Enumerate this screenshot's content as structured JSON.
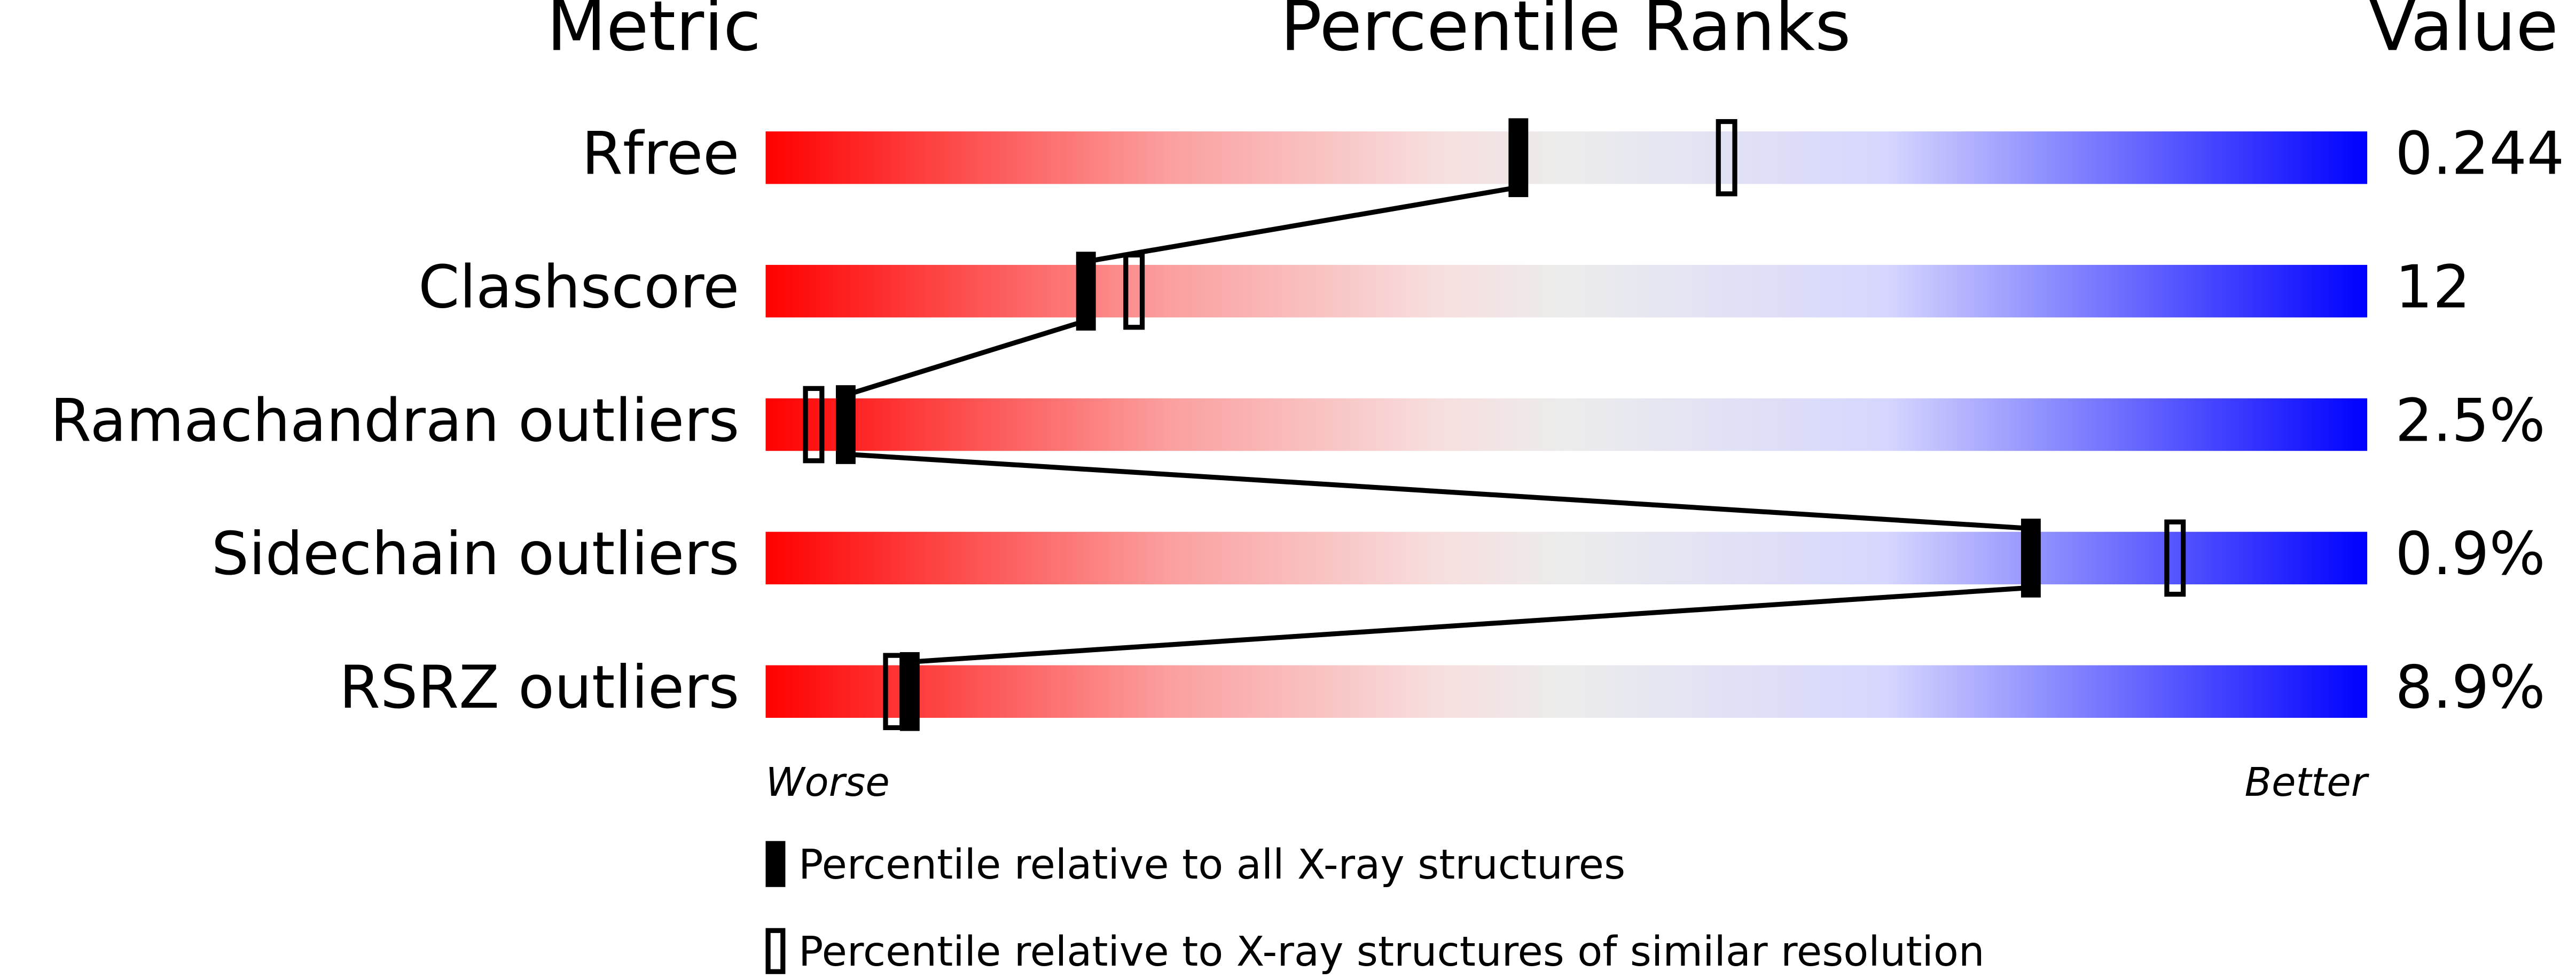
{
  "chart_data": {
    "type": "percentile",
    "headers": {
      "metric": "Metric",
      "percentile": "Percentile Ranks",
      "value": "Value"
    },
    "categories": [
      "Rfree",
      "Clashscore",
      "Ramachandran outliers",
      "Sidechain outliers",
      "RSRZ outliers"
    ],
    "metric_values": [
      "0.244",
      "12",
      "2.5%",
      "0.9%",
      "8.9%"
    ],
    "series": [
      {
        "name": "Percentile relative to all X-ray structures",
        "color": "#000000",
        "values": [
          47,
          20,
          5,
          79,
          9
        ]
      },
      {
        "name": "Percentile relative to X-ray structures of similar resolution",
        "color": "#000000",
        "values": [
          60,
          23,
          3,
          88,
          8
        ]
      }
    ],
    "xlim": [
      0,
      100
    ],
    "worse_label": "Worse",
    "better_label": "Better"
  }
}
